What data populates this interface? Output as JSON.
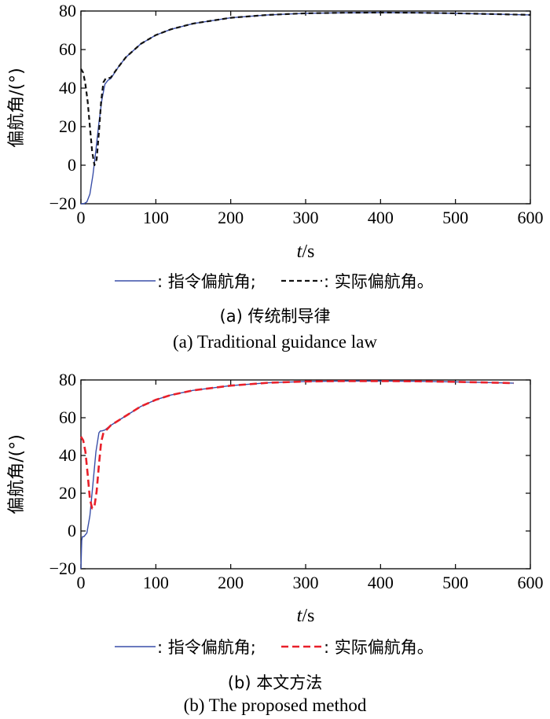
{
  "colors": {
    "command": "#3a4fa8",
    "actual_a": "#111111",
    "actual_b": "#e8202a"
  },
  "chart_data": [
    {
      "type": "line",
      "ylabel": "偏航角/(°)",
      "xlabel_italic": "t",
      "xlabel_unit": "/s",
      "xlim": [
        0,
        600
      ],
      "ylim": [
        -20,
        80
      ],
      "xticks": [
        "0",
        "100",
        "200",
        "300",
        "400",
        "500",
        "600"
      ],
      "yticks": [
        "−20",
        "0",
        "20",
        "40",
        "60",
        "80"
      ],
      "legend": {
        "command_label": ": 指令偏航角;",
        "actual_label": ": 实际偏航角。"
      },
      "series": [
        {
          "name": "指令偏航角",
          "style": "solid",
          "color": "#3a4fa8",
          "x": [
            0,
            2,
            4,
            8,
            12,
            16,
            20,
            24,
            28,
            32,
            36,
            40,
            50,
            60,
            80,
            100,
            120,
            150,
            200,
            250,
            300,
            350,
            400,
            450,
            500,
            550,
            600
          ],
          "y": [
            -20,
            -20,
            -20,
            -19,
            -15,
            -5,
            8,
            22,
            34,
            42,
            44,
            45,
            51,
            56,
            63,
            67.5,
            70.5,
            73.5,
            76.5,
            78,
            78.8,
            79.1,
            79.2,
            79.1,
            78.8,
            78.4,
            78
          ]
        },
        {
          "name": "实际偏航角",
          "style": "dashed",
          "color": "#111111",
          "x": [
            0,
            3,
            6,
            9,
            12,
            15,
            18,
            21,
            24,
            27,
            30,
            33,
            36,
            40,
            50,
            60,
            80,
            100,
            120,
            150,
            200,
            250,
            300,
            350,
            400,
            450,
            500,
            550,
            600
          ],
          "y": [
            50,
            48,
            42,
            33,
            20,
            7,
            0,
            3,
            17,
            33,
            43,
            45,
            45,
            45.5,
            51,
            56,
            63,
            67.5,
            70.5,
            73.5,
            76.5,
            78,
            78.8,
            79.1,
            79.2,
            79.1,
            78.8,
            78.4,
            78
          ]
        }
      ],
      "caption_zh": "(a) 传统制导律",
      "caption_en": "(a) Traditional guidance law"
    },
    {
      "type": "line",
      "ylabel": "偏航角/(°)",
      "xlabel_italic": "t",
      "xlabel_unit": "/s",
      "xlim": [
        0,
        600
      ],
      "ylim": [
        -20,
        80
      ],
      "xticks": [
        "0",
        "100",
        "200",
        "300",
        "400",
        "500",
        "600"
      ],
      "yticks": [
        "−20",
        "0",
        "20",
        "40",
        "60",
        "80"
      ],
      "legend": {
        "command_label": ": 指令偏航角;",
        "actual_label": ": 实际偏航角。"
      },
      "series": [
        {
          "name": "指令偏航角",
          "style": "solid",
          "color": "#3a4fa8",
          "x": [
            0,
            1,
            2,
            4,
            8,
            12,
            16,
            20,
            24,
            26,
            28,
            32,
            40,
            50,
            60,
            80,
            100,
            120,
            150,
            200,
            250,
            300,
            350,
            400,
            450,
            500,
            550,
            578
          ],
          "y": [
            -20,
            -5,
            -3,
            -3,
            -1,
            8,
            25,
            42,
            52,
            53,
            53,
            53.5,
            56,
            58.5,
            61,
            66,
            69.5,
            72,
            74.5,
            77,
            78.5,
            79.2,
            79.4,
            79.4,
            79.3,
            79,
            78.6,
            78.3
          ]
        },
        {
          "name": "实际偏航角",
          "style": "dashed",
          "color": "#e8202a",
          "x": [
            0,
            3,
            6,
            9,
            12,
            15,
            18,
            21,
            24,
            27,
            30,
            34,
            40,
            50,
            60,
            80,
            100,
            120,
            150,
            200,
            250,
            300,
            350,
            400,
            450,
            500,
            550,
            578
          ],
          "y": [
            50,
            48,
            42,
            30,
            17,
            12,
            13,
            21,
            35,
            47,
            52,
            53.5,
            56,
            58.5,
            61,
            66,
            69.5,
            72,
            74.5,
            77,
            78.5,
            79.2,
            79.4,
            79.4,
            79.3,
            79,
            78.6,
            78.3
          ]
        }
      ],
      "caption_zh": "(b) 本文方法",
      "caption_en": "(b) The proposed method"
    }
  ]
}
